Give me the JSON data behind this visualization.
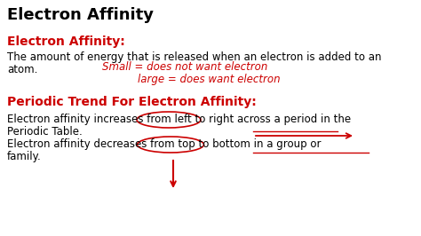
{
  "bg_color": "#ffffff",
  "title": "Electron Affinity",
  "title_fontsize": 13,
  "title_color": "#000000",
  "section1_header": "Electron Affinity:",
  "section1_header_color": "#cc0000",
  "section1_header_fontsize": 10,
  "section1_text_line1": "The amount of energy that is released when an electron is added to an",
  "section1_text_line2": "atom.",
  "section1_text_color": "#000000",
  "section1_text_fontsize": 8.5,
  "handwriting1": "Small = does not want electron",
  "handwriting2": "large = does want electron",
  "handwriting_color": "#cc0000",
  "handwriting_fontsize": 8.5,
  "section2_header": "Periodic Trend For Electron Affinity:",
  "section2_header_color": "#cc0000",
  "section2_header_fontsize": 10,
  "section2_text_line1": "Electron affinity increases from left to right across a period in the",
  "section2_text_line2": "Periodic Table.",
  "section2_text_line3": "Electron affinity decreases from top to bottom in a group or",
  "section2_text_line4": "family.",
  "section2_text_color": "#000000",
  "section2_text_fontsize": 8.5,
  "fig_width": 4.74,
  "fig_height": 2.66,
  "dpi": 100
}
